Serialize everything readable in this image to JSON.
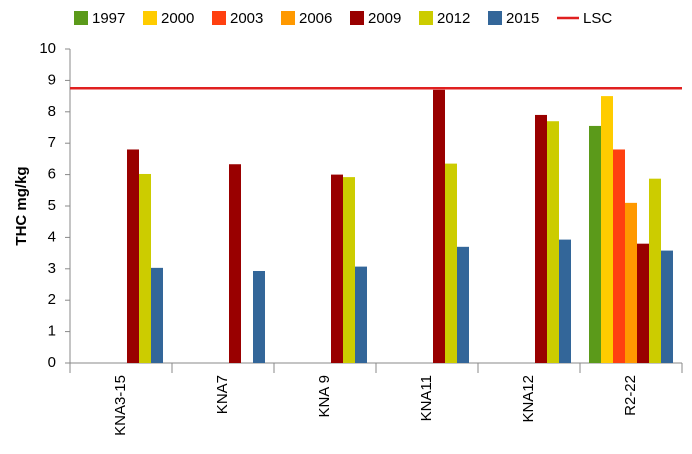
{
  "chart_data": {
    "type": "bar",
    "ylabel": "THC mg/kg",
    "categories": [
      "KNA3-15",
      "KNA7",
      "KNA 9",
      "KNA11",
      "KNA12",
      "R2-22"
    ],
    "series": [
      {
        "name": "1997",
        "color": "#5b9a1a",
        "values": [
          null,
          null,
          null,
          null,
          null,
          7.55
        ]
      },
      {
        "name": "2000",
        "color": "#ffcc00",
        "values": [
          null,
          null,
          null,
          null,
          null,
          8.5
        ]
      },
      {
        "name": "2003",
        "color": "#ff4010",
        "values": [
          null,
          null,
          null,
          null,
          null,
          6.8
        ]
      },
      {
        "name": "2006",
        "color": "#ff9900",
        "values": [
          null,
          null,
          null,
          null,
          null,
          5.1
        ]
      },
      {
        "name": "2009",
        "color": "#990000",
        "values": [
          6.8,
          6.33,
          6.0,
          8.7,
          7.9,
          3.8
        ]
      },
      {
        "name": "2012",
        "color": "#cccc00",
        "values": [
          6.02,
          null,
          5.92,
          6.35,
          7.7,
          5.87
        ]
      },
      {
        "name": "2015",
        "color": "#336699",
        "values": [
          3.03,
          2.93,
          3.07,
          3.7,
          3.93,
          3.58
        ]
      }
    ],
    "reference_lines": [
      {
        "name": "LSC",
        "value": 8.75,
        "color": "#e02020"
      }
    ],
    "ylim": [
      0,
      10
    ],
    "yticks": [
      0,
      1,
      2,
      3,
      4,
      5,
      6,
      7,
      8,
      9,
      10
    ],
    "grid": false,
    "legend": "top"
  }
}
